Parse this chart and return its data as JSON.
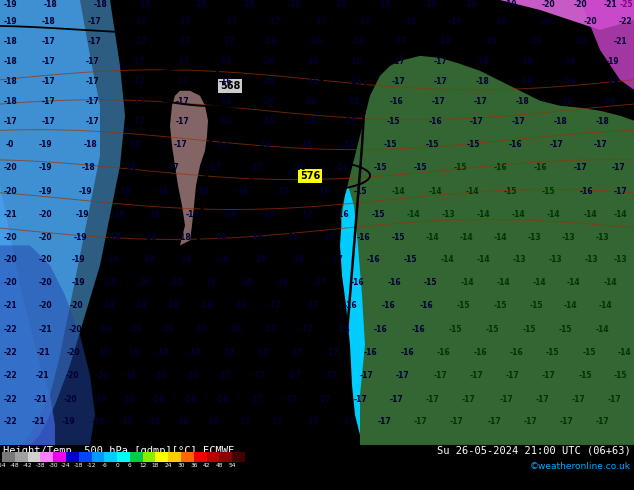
{
  "title_left": "Height/Temp. 500 hPa [gdmp][°C] ECMWF",
  "title_right": "Su 26-05-2024 21:00 UTC (06+63)",
  "credit": "©weatheronline.co.uk",
  "colorbar_ticks": [
    "-54",
    "-48",
    "-42",
    "-38",
    "-30",
    "-24",
    "-18",
    "-12",
    "-6",
    "0",
    "6",
    "12",
    "18",
    "24",
    "30",
    "36",
    "42",
    "48",
    "54"
  ],
  "colorbar_colors": [
    "#787878",
    "#a0a0a0",
    "#d0d0d0",
    "#ff80ff",
    "#ee00ee",
    "#0000cc",
    "#0044ff",
    "#0099ff",
    "#00ccff",
    "#00ffee",
    "#00cc44",
    "#88ee00",
    "#ffff00",
    "#ffcc00",
    "#ff6600",
    "#ee0000",
    "#bb0000",
    "#880000",
    "#440000"
  ],
  "map_cyan": "#00ccff",
  "map_dark_blue": "#3399ee",
  "map_darker_blue": "#4466cc",
  "map_darkest_blue": "#2244aa",
  "map_green": "#336633",
  "map_trough_color": "#004488",
  "contour_color": "#000000",
  "isotherm_color": "#993300",
  "height_label_568_bg": "#cccccc",
  "height_label_576_bg": "#ffff00",
  "label_color_blue": "#000033",
  "label_color_green": "#003300",
  "label_color_magenta": "#880088",
  "bottom_bg": "#000000",
  "text_white": "#ffffff",
  "credit_color": "#00aaff"
}
